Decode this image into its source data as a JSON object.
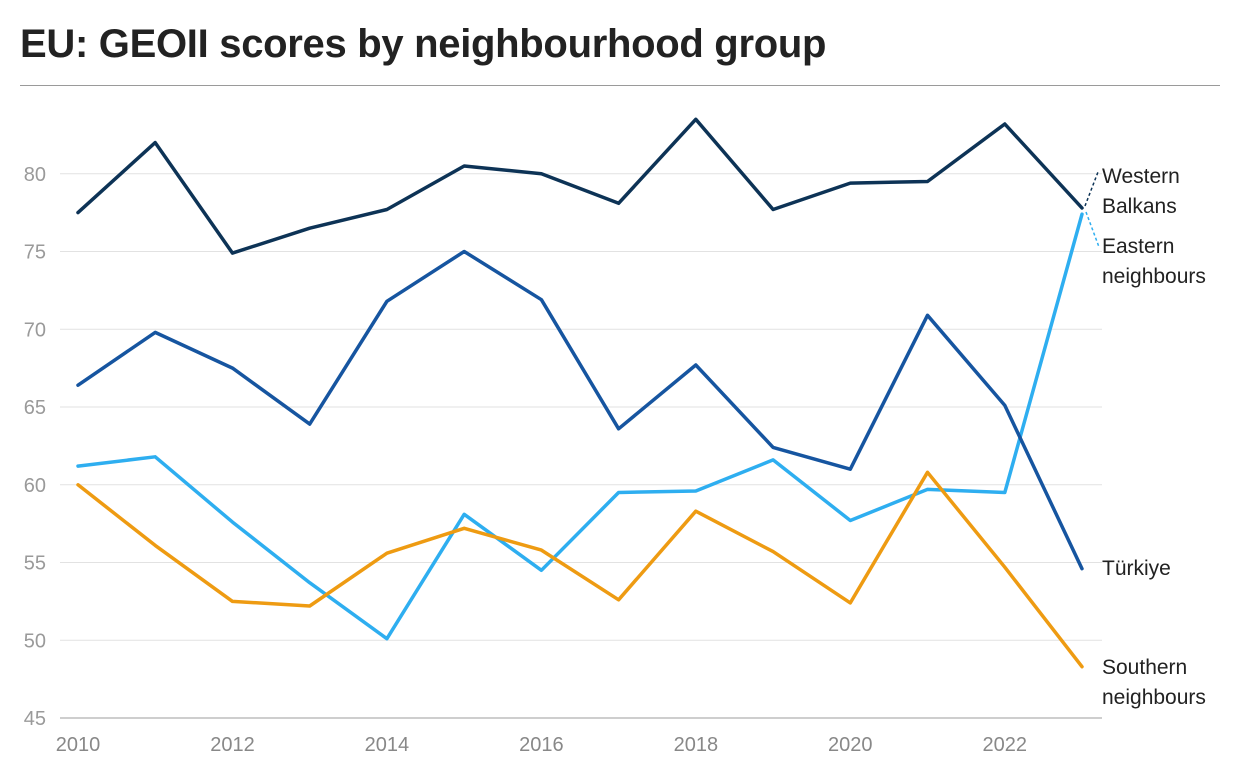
{
  "title": "EU: GEOII scores by neighbourhood group",
  "chart_data": {
    "type": "line",
    "title": "EU: GEOII scores by neighbourhood group",
    "xlabel": "",
    "ylabel": "",
    "x": [
      2010,
      2011,
      2012,
      2013,
      2014,
      2015,
      2016,
      2017,
      2018,
      2019,
      2020,
      2021,
      2022,
      2023
    ],
    "xticks": [
      "2010",
      "2012",
      "2014",
      "2016",
      "2018",
      "2020",
      "2022"
    ],
    "yticks": [
      "45",
      "50",
      "55",
      "60",
      "65",
      "70",
      "75",
      "80"
    ],
    "ylim": [
      45,
      84
    ],
    "grid": "horizontal",
    "legend": "direct labels at right end of lines",
    "series": [
      {
        "name": "Western Balkans",
        "label_lines": [
          "Western",
          "Balkans"
        ],
        "color": "#0d3356",
        "values": [
          77.5,
          82.0,
          74.9,
          76.5,
          77.7,
          80.5,
          80.0,
          78.1,
          83.5,
          77.7,
          79.4,
          79.5,
          83.2,
          77.8
        ]
      },
      {
        "name": "Eastern neighbours",
        "label_lines": [
          "Eastern",
          "neighbours"
        ],
        "color": "#2eaef0",
        "values": [
          61.2,
          61.8,
          57.6,
          53.7,
          50.1,
          58.1,
          54.5,
          59.5,
          59.6,
          61.6,
          57.7,
          59.7,
          59.5,
          77.4
        ]
      },
      {
        "name": "Türkiye",
        "label_lines": [
          "Türkiye"
        ],
        "color": "#1655a0",
        "values": [
          66.4,
          69.8,
          67.5,
          63.9,
          71.8,
          75.0,
          71.9,
          63.6,
          67.7,
          62.4,
          61.0,
          70.9,
          65.1,
          54.6
        ]
      },
      {
        "name": "Southern neighbours",
        "label_lines": [
          "Southern",
          "neighbours"
        ],
        "color": "#ee9b12",
        "values": [
          60.0,
          56.1,
          52.5,
          52.2,
          55.6,
          57.2,
          55.8,
          52.6,
          58.3,
          55.7,
          52.4,
          60.8,
          54.7,
          48.3
        ]
      }
    ]
  }
}
